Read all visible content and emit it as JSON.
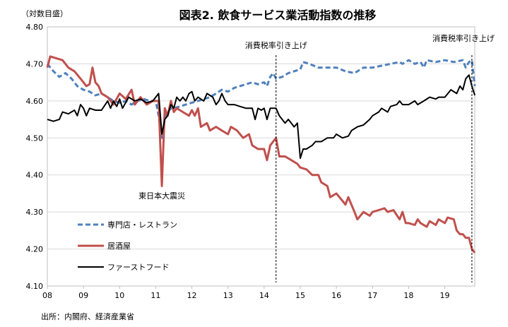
{
  "chart_data": {
    "type": "line",
    "title": "図表2. 飲食サービス業活動指数の推移",
    "ylabel": "（対数目盛）",
    "source": "出所：内閣府、経済産業省",
    "ylim": [
      4.1,
      4.8
    ],
    "yticks": [
      4.1,
      4.2,
      4.3,
      4.4,
      4.5,
      4.6,
      4.7,
      4.8
    ],
    "ytick_labels": [
      "4.10",
      "4.20",
      "4.30",
      "4.40",
      "4.50",
      "4.60",
      "4.70",
      "4.80"
    ],
    "xlim": [
      2008.0,
      2019.83
    ],
    "xticks": [
      2008,
      2009,
      2010,
      2011,
      2012,
      2013,
      2014,
      2015,
      2016,
      2017,
      2018,
      2019
    ],
    "xtick_labels": [
      "08",
      "09",
      "10",
      "11",
      "12",
      "13",
      "14",
      "15",
      "16",
      "17",
      "18",
      "19"
    ],
    "annotations": [
      {
        "text": "消費税率引き上げ",
        "x": 2014.33,
        "type": "vline"
      },
      {
        "text": "消費税率引き上げ",
        "x": 2019.75,
        "type": "vline"
      },
      {
        "text": "東日本大震災",
        "x": 2011.17,
        "y": 4.37,
        "type": "label"
      }
    ],
    "series": [
      {
        "name": "専門店・レストラン",
        "color": "#4f81bd",
        "style": "dashed",
        "points": [
          [
            2008.0,
            4.7
          ],
          [
            2008.17,
            4.68
          ],
          [
            2008.33,
            4.665
          ],
          [
            2008.5,
            4.675
          ],
          [
            2008.67,
            4.66
          ],
          [
            2008.83,
            4.64
          ],
          [
            2009.0,
            4.63
          ],
          [
            2009.17,
            4.625
          ],
          [
            2009.33,
            4.615
          ],
          [
            2009.5,
            4.62
          ],
          [
            2009.67,
            4.61
          ],
          [
            2009.83,
            4.6
          ],
          [
            2010.0,
            4.595
          ],
          [
            2010.17,
            4.6
          ],
          [
            2010.33,
            4.59
          ],
          [
            2010.5,
            4.6
          ],
          [
            2010.67,
            4.605
          ],
          [
            2010.83,
            4.6
          ],
          [
            2011.0,
            4.6
          ],
          [
            2011.08,
            4.56
          ],
          [
            2011.17,
            4.5
          ],
          [
            2011.25,
            4.55
          ],
          [
            2011.33,
            4.57
          ],
          [
            2011.42,
            4.58
          ],
          [
            2011.5,
            4.58
          ],
          [
            2011.67,
            4.585
          ],
          [
            2011.83,
            4.59
          ],
          [
            2012.0,
            4.595
          ],
          [
            2012.17,
            4.6
          ],
          [
            2012.33,
            4.605
          ],
          [
            2012.5,
            4.61
          ],
          [
            2012.67,
            4.62
          ],
          [
            2012.83,
            4.63
          ],
          [
            2013.0,
            4.625
          ],
          [
            2013.17,
            4.635
          ],
          [
            2013.33,
            4.64
          ],
          [
            2013.5,
            4.645
          ],
          [
            2013.67,
            4.65
          ],
          [
            2013.83,
            4.645
          ],
          [
            2014.0,
            4.65
          ],
          [
            2014.08,
            4.64
          ],
          [
            2014.17,
            4.665
          ],
          [
            2014.25,
            4.675
          ],
          [
            2014.33,
            4.66
          ],
          [
            2014.5,
            4.665
          ],
          [
            2014.67,
            4.675
          ],
          [
            2014.83,
            4.68
          ],
          [
            2015.0,
            4.685
          ],
          [
            2015.08,
            4.705
          ],
          [
            2015.25,
            4.7
          ],
          [
            2015.5,
            4.69
          ],
          [
            2015.75,
            4.69
          ],
          [
            2016.0,
            4.69
          ],
          [
            2016.25,
            4.68
          ],
          [
            2016.5,
            4.675
          ],
          [
            2016.75,
            4.69
          ],
          [
            2017.0,
            4.69
          ],
          [
            2017.25,
            4.695
          ],
          [
            2017.5,
            4.7
          ],
          [
            2017.75,
            4.705
          ],
          [
            2017.83,
            4.7
          ],
          [
            2018.0,
            4.71
          ],
          [
            2018.17,
            4.7
          ],
          [
            2018.33,
            4.705
          ],
          [
            2018.42,
            4.69
          ],
          [
            2018.5,
            4.71
          ],
          [
            2018.75,
            4.705
          ],
          [
            2019.0,
            4.71
          ],
          [
            2019.25,
            4.705
          ],
          [
            2019.5,
            4.71
          ],
          [
            2019.58,
            4.69
          ],
          [
            2019.67,
            4.705
          ],
          [
            2019.75,
            4.71
          ],
          [
            2019.83,
            4.64
          ]
        ]
      },
      {
        "name": "居酒屋",
        "color": "#c0504d",
        "style": "solid",
        "points": [
          [
            2008.0,
            4.69
          ],
          [
            2008.08,
            4.72
          ],
          [
            2008.25,
            4.715
          ],
          [
            2008.42,
            4.71
          ],
          [
            2008.58,
            4.69
          ],
          [
            2008.75,
            4.68
          ],
          [
            2008.92,
            4.66
          ],
          [
            2009.0,
            4.65
          ],
          [
            2009.08,
            4.64
          ],
          [
            2009.17,
            4.645
          ],
          [
            2009.25,
            4.69
          ],
          [
            2009.33,
            4.65
          ],
          [
            2009.42,
            4.64
          ],
          [
            2009.5,
            4.62
          ],
          [
            2009.67,
            4.61
          ],
          [
            2009.83,
            4.59
          ],
          [
            2010.0,
            4.62
          ],
          [
            2010.17,
            4.605
          ],
          [
            2010.33,
            4.63
          ],
          [
            2010.42,
            4.59
          ],
          [
            2010.58,
            4.61
          ],
          [
            2010.75,
            4.59
          ],
          [
            2010.92,
            4.6
          ],
          [
            2011.0,
            4.6
          ],
          [
            2011.08,
            4.6
          ],
          [
            2011.17,
            4.37
          ],
          [
            2011.25,
            4.58
          ],
          [
            2011.33,
            4.56
          ],
          [
            2011.42,
            4.6
          ],
          [
            2011.5,
            4.57
          ],
          [
            2011.58,
            4.58
          ],
          [
            2011.75,
            4.57
          ],
          [
            2011.92,
            4.56
          ],
          [
            2012.0,
            4.575
          ],
          [
            2012.08,
            4.56
          ],
          [
            2012.17,
            4.58
          ],
          [
            2012.25,
            4.53
          ],
          [
            2012.42,
            4.54
          ],
          [
            2012.5,
            4.52
          ],
          [
            2012.67,
            4.53
          ],
          [
            2012.83,
            4.52
          ],
          [
            2013.0,
            4.51
          ],
          [
            2013.08,
            4.53
          ],
          [
            2013.25,
            4.52
          ],
          [
            2013.42,
            4.5
          ],
          [
            2013.58,
            4.51
          ],
          [
            2013.67,
            4.48
          ],
          [
            2013.83,
            4.47
          ],
          [
            2014.0,
            4.47
          ],
          [
            2014.08,
            4.44
          ],
          [
            2014.17,
            4.48
          ],
          [
            2014.25,
            4.49
          ],
          [
            2014.33,
            4.5
          ],
          [
            2014.42,
            4.45
          ],
          [
            2014.58,
            4.45
          ],
          [
            2014.75,
            4.44
          ],
          [
            2014.92,
            4.43
          ],
          [
            2015.0,
            4.42
          ],
          [
            2015.17,
            4.415
          ],
          [
            2015.33,
            4.4
          ],
          [
            2015.5,
            4.4
          ],
          [
            2015.58,
            4.38
          ],
          [
            2015.75,
            4.37
          ],
          [
            2015.83,
            4.34
          ],
          [
            2016.0,
            4.35
          ],
          [
            2016.17,
            4.33
          ],
          [
            2016.25,
            4.32
          ],
          [
            2016.33,
            4.34
          ],
          [
            2016.5,
            4.3
          ],
          [
            2016.58,
            4.28
          ],
          [
            2016.75,
            4.3
          ],
          [
            2016.92,
            4.29
          ],
          [
            2017.0,
            4.3
          ],
          [
            2017.17,
            4.305
          ],
          [
            2017.33,
            4.31
          ],
          [
            2017.42,
            4.3
          ],
          [
            2017.58,
            4.305
          ],
          [
            2017.75,
            4.28
          ],
          [
            2017.83,
            4.3
          ],
          [
            2017.92,
            4.27
          ],
          [
            2018.0,
            4.27
          ],
          [
            2018.17,
            4.265
          ],
          [
            2018.25,
            4.28
          ],
          [
            2018.33,
            4.27
          ],
          [
            2018.5,
            4.26
          ],
          [
            2018.58,
            4.275
          ],
          [
            2018.75,
            4.265
          ],
          [
            2018.83,
            4.28
          ],
          [
            2019.0,
            4.27
          ],
          [
            2019.08,
            4.285
          ],
          [
            2019.25,
            4.28
          ],
          [
            2019.33,
            4.25
          ],
          [
            2019.42,
            4.24
          ],
          [
            2019.5,
            4.24
          ],
          [
            2019.58,
            4.23
          ],
          [
            2019.67,
            4.23
          ],
          [
            2019.75,
            4.2
          ],
          [
            2019.83,
            4.19
          ]
        ]
      },
      {
        "name": "ファーストフード",
        "color": "#000000",
        "style": "solid",
        "points": [
          [
            2008.0,
            4.55
          ],
          [
            2008.17,
            4.545
          ],
          [
            2008.33,
            4.55
          ],
          [
            2008.42,
            4.57
          ],
          [
            2008.58,
            4.565
          ],
          [
            2008.75,
            4.575
          ],
          [
            2008.83,
            4.56
          ],
          [
            2008.92,
            4.59
          ],
          [
            2009.0,
            4.58
          ],
          [
            2009.08,
            4.56
          ],
          [
            2009.17,
            4.58
          ],
          [
            2009.33,
            4.575
          ],
          [
            2009.5,
            4.575
          ],
          [
            2009.67,
            4.6
          ],
          [
            2009.75,
            4.58
          ],
          [
            2009.83,
            4.6
          ],
          [
            2009.92,
            4.585
          ],
          [
            2010.0,
            4.605
          ],
          [
            2010.08,
            4.58
          ],
          [
            2010.25,
            4.61
          ],
          [
            2010.42,
            4.6
          ],
          [
            2010.58,
            4.605
          ],
          [
            2010.75,
            4.595
          ],
          [
            2010.92,
            4.6
          ],
          [
            2011.0,
            4.61
          ],
          [
            2011.08,
            4.62
          ],
          [
            2011.17,
            4.51
          ],
          [
            2011.25,
            4.55
          ],
          [
            2011.33,
            4.56
          ],
          [
            2011.42,
            4.59
          ],
          [
            2011.5,
            4.58
          ],
          [
            2011.58,
            4.61
          ],
          [
            2011.67,
            4.6
          ],
          [
            2011.75,
            4.61
          ],
          [
            2011.83,
            4.6
          ],
          [
            2011.92,
            4.62
          ],
          [
            2012.0,
            4.625
          ],
          [
            2012.08,
            4.6
          ],
          [
            2012.17,
            4.61
          ],
          [
            2012.33,
            4.6
          ],
          [
            2012.42,
            4.62
          ],
          [
            2012.58,
            4.61
          ],
          [
            2012.67,
            4.59
          ],
          [
            2012.75,
            4.6
          ],
          [
            2012.83,
            4.62
          ],
          [
            2012.92,
            4.6
          ],
          [
            2013.0,
            4.59
          ],
          [
            2013.17,
            4.59
          ],
          [
            2013.33,
            4.585
          ],
          [
            2013.5,
            4.58
          ],
          [
            2013.67,
            4.58
          ],
          [
            2013.75,
            4.55
          ],
          [
            2013.83,
            4.58
          ],
          [
            2013.92,
            4.575
          ],
          [
            2014.0,
            4.58
          ],
          [
            2014.08,
            4.55
          ],
          [
            2014.17,
            4.58
          ],
          [
            2014.33,
            4.58
          ],
          [
            2014.42,
            4.56
          ],
          [
            2014.5,
            4.55
          ],
          [
            2014.58,
            4.54
          ],
          [
            2014.67,
            4.55
          ],
          [
            2014.75,
            4.54
          ],
          [
            2014.83,
            4.53
          ],
          [
            2014.92,
            4.54
          ],
          [
            2015.0,
            4.445
          ],
          [
            2015.08,
            4.47
          ],
          [
            2015.17,
            4.47
          ],
          [
            2015.33,
            4.48
          ],
          [
            2015.42,
            4.49
          ],
          [
            2015.58,
            4.49
          ],
          [
            2015.75,
            4.5
          ],
          [
            2015.92,
            4.5
          ],
          [
            2016.0,
            4.51
          ],
          [
            2016.17,
            4.5
          ],
          [
            2016.33,
            4.505
          ],
          [
            2016.42,
            4.52
          ],
          [
            2016.58,
            4.53
          ],
          [
            2016.75,
            4.535
          ],
          [
            2016.92,
            4.55
          ],
          [
            2017.0,
            4.56
          ],
          [
            2017.17,
            4.57
          ],
          [
            2017.25,
            4.58
          ],
          [
            2017.42,
            4.57
          ],
          [
            2017.5,
            4.585
          ],
          [
            2017.67,
            4.59
          ],
          [
            2017.75,
            4.6
          ],
          [
            2017.83,
            4.59
          ],
          [
            2018.0,
            4.59
          ],
          [
            2018.17,
            4.6
          ],
          [
            2018.25,
            4.59
          ],
          [
            2018.42,
            4.6
          ],
          [
            2018.58,
            4.61
          ],
          [
            2018.75,
            4.605
          ],
          [
            2018.83,
            4.61
          ],
          [
            2019.0,
            4.61
          ],
          [
            2019.17,
            4.63
          ],
          [
            2019.33,
            4.62
          ],
          [
            2019.42,
            4.64
          ],
          [
            2019.5,
            4.63
          ],
          [
            2019.58,
            4.66
          ],
          [
            2019.67,
            4.67
          ],
          [
            2019.75,
            4.64
          ],
          [
            2019.83,
            4.615
          ]
        ]
      }
    ]
  }
}
